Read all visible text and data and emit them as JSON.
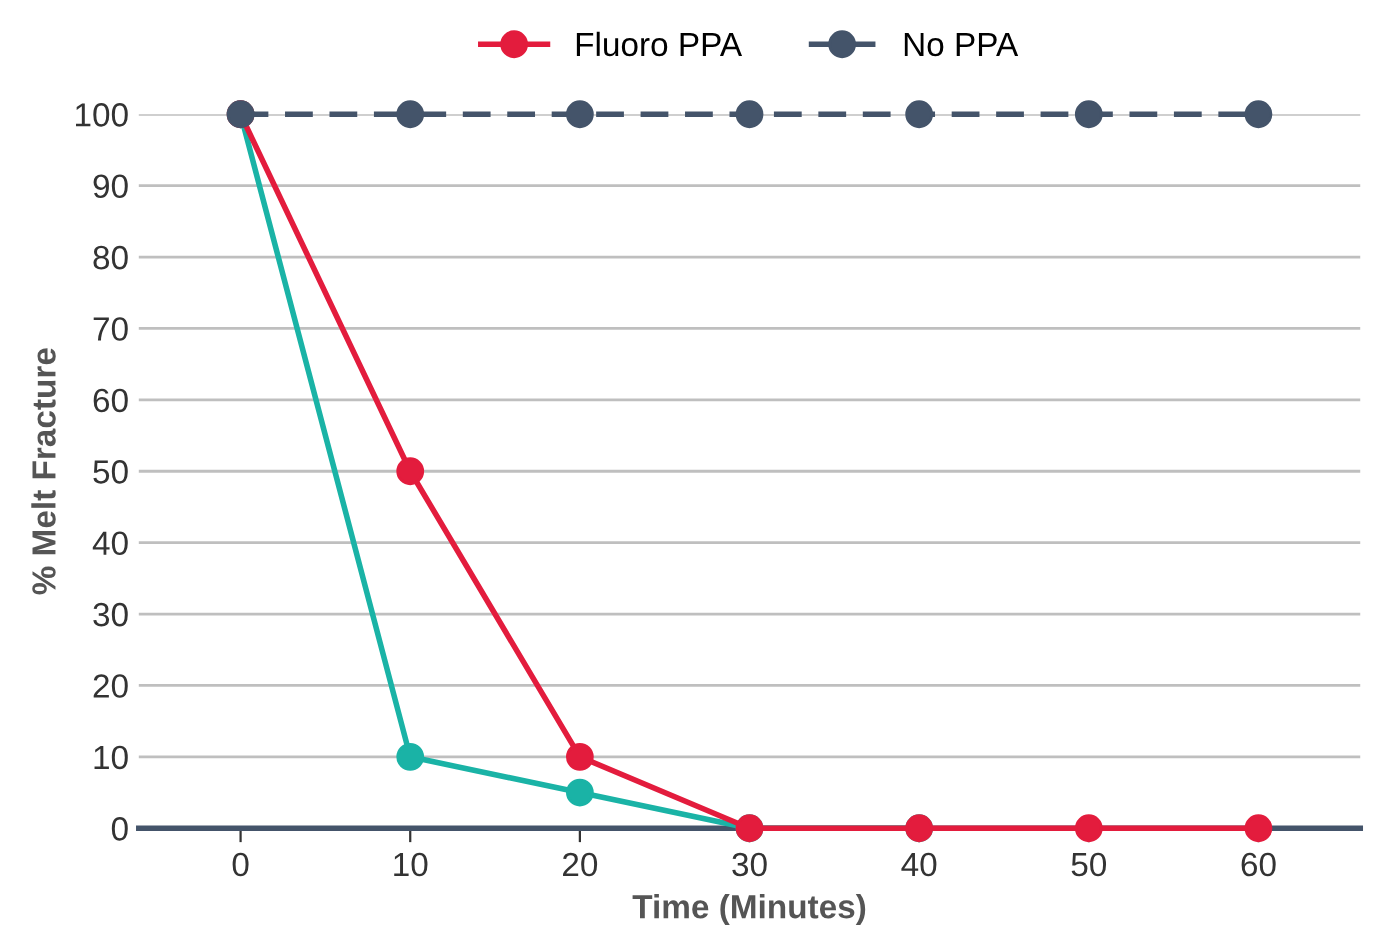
{
  "chart_data": {
    "type": "line",
    "xlabel": "Time (Minutes)",
    "ylabel": "% Melt Fracture",
    "x": [
      0,
      10,
      20,
      30,
      40,
      50,
      60
    ],
    "series": [
      {
        "color": "#1ab3a6",
        "values": [
          100,
          10,
          5,
          0,
          0,
          null,
          null
        ]
      },
      {
        "name": "Fluoro PPA",
        "color": "#e31c3d",
        "values": [
          100,
          50,
          10,
          0,
          0,
          0,
          0
        ]
      },
      {
        "name": "No PPA",
        "color": "#44546a",
        "values": [
          100,
          100,
          100,
          100,
          100,
          100,
          100
        ],
        "line_style": "dashed"
      }
    ],
    "xlim": [
      -6,
      66
    ],
    "xticks": [
      0,
      10,
      20,
      30,
      40,
      50,
      60
    ],
    "ylim": [
      0,
      100
    ],
    "yticks": [
      0,
      10,
      20,
      30,
      40,
      50,
      60,
      70,
      80,
      90,
      100
    ],
    "grid": "y",
    "legend": "top",
    "marker": "circle"
  }
}
